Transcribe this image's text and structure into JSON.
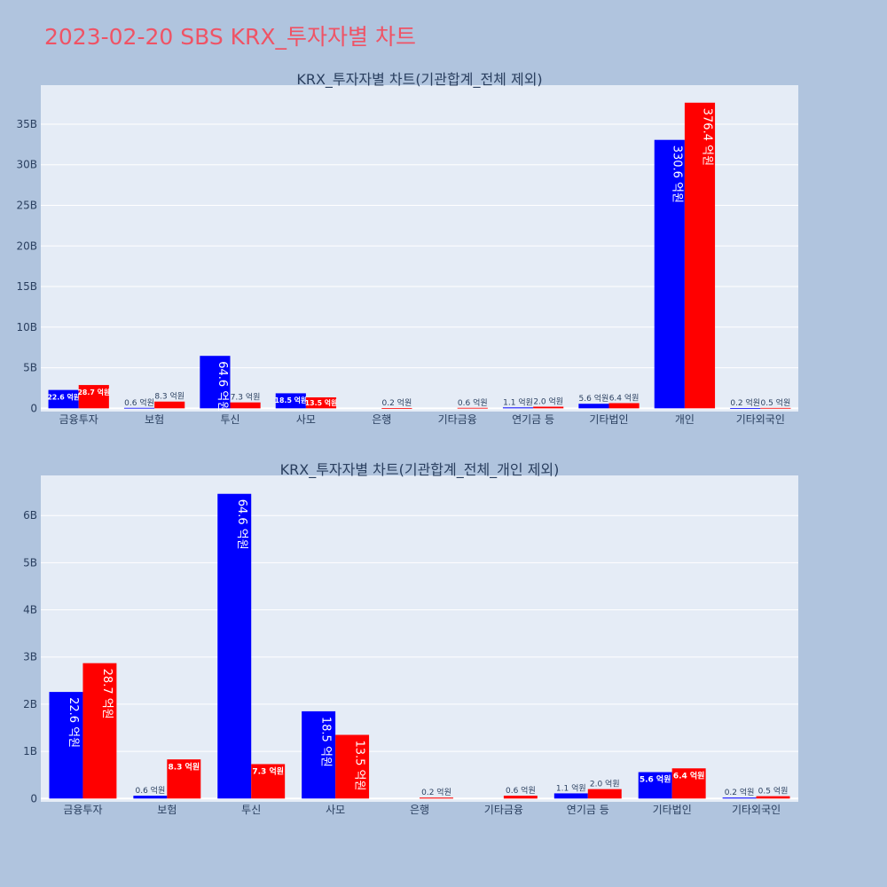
{
  "page": {
    "title": "2023-02-20 SBS KRX_투자자별 차트"
  },
  "colors": {
    "background": "#b0c4de",
    "plot_bg": "#e5ecf6",
    "title": "#ef5365",
    "series_a": "#0000ff",
    "series_b": "#ff0000"
  },
  "chart_data": [
    {
      "type": "bar",
      "title": "KRX_투자자별 차트(기관합계_전체 제외)",
      "categories": [
        "금융투자",
        "보험",
        "투신",
        "사모",
        "은행",
        "기타금융",
        "연기금 등",
        "기타법인",
        "개인",
        "기타외국인"
      ],
      "series": [
        {
          "values": [
            2.26,
            0.06,
            6.46,
            1.85,
            0,
            0,
            0.11,
            0.56,
            33.06,
            0.02
          ],
          "labels": [
            "22.6 억원",
            "0.6 억원",
            "64.6 억원",
            "18.5 억원",
            "",
            "",
            "1.1 억원",
            "5.6 억원",
            "330.6 억원",
            "0.2 억원"
          ]
        },
        {
          "values": [
            2.87,
            0.83,
            0.73,
            1.35,
            0.02,
            0.06,
            0.2,
            0.64,
            37.64,
            0.05
          ],
          "labels": [
            "28.7 억원",
            "8.3 억원",
            "7.3 억원",
            "13.5 억원",
            "0.2 억원",
            "0.6 억원",
            "2.0 억원",
            "6.4 억원",
            "376.4 억원",
            "0.5 억원"
          ]
        }
      ],
      "ylim": [
        -0.4,
        39.8
      ],
      "yticks": [
        0,
        5,
        10,
        15,
        20,
        25,
        30,
        35
      ],
      "ytick_labels": [
        "0",
        "5B",
        "10B",
        "15B",
        "20B",
        "25B",
        "30B",
        "35B"
      ],
      "grid": true
    },
    {
      "type": "bar",
      "title": "KRX_투자자별 차트(기관합계_전체_개인 제외)",
      "categories": [
        "금융투자",
        "보험",
        "투신",
        "사모",
        "은행",
        "기타금융",
        "연기금 등",
        "기타법인",
        "기타외국인"
      ],
      "series": [
        {
          "values": [
            2.26,
            0.06,
            6.46,
            1.85,
            0,
            0,
            0.11,
            0.56,
            0.02
          ],
          "labels": [
            "22.6 억원",
            "0.6 억원",
            "64.6 억원",
            "18.5 억원",
            "",
            "",
            "1.1 억원",
            "5.6 억원",
            "0.2 억원"
          ]
        },
        {
          "values": [
            2.87,
            0.83,
            0.73,
            1.35,
            0.02,
            0.06,
            0.2,
            0.64,
            0.05
          ],
          "labels": [
            "28.7 억원",
            "8.3 억원",
            "7.3 억원",
            "13.5 억원",
            "0.2 억원",
            "0.6 억원",
            "2.0 억원",
            "6.4 억원",
            "0.5 억원"
          ]
        }
      ],
      "ylim": [
        -0.07,
        6.85
      ],
      "yticks": [
        0,
        1,
        2,
        3,
        4,
        5,
        6
      ],
      "ytick_labels": [
        "0",
        "1B",
        "2B",
        "3B",
        "4B",
        "5B",
        "6B"
      ],
      "grid": true
    }
  ]
}
